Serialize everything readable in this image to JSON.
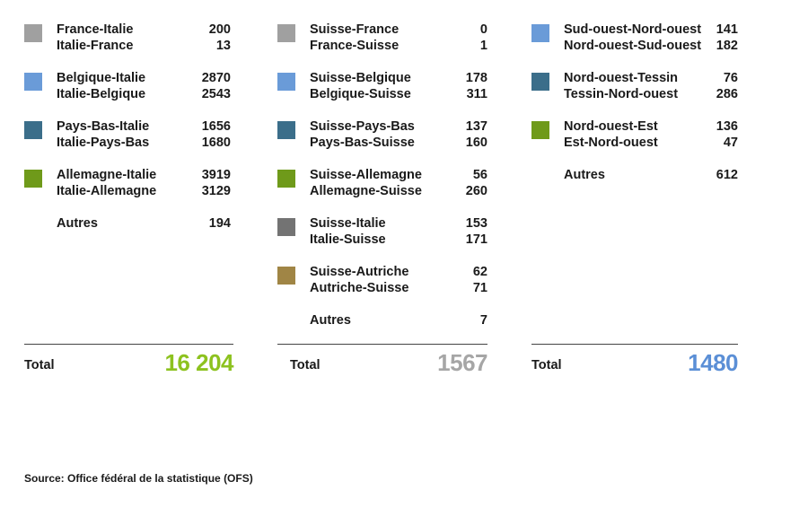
{
  "chart_data": {
    "type": "table",
    "columns": [
      {
        "groups": [
          {
            "color": "#a0a0a0",
            "rows": [
              {
                "label": "France-Italie",
                "value": "200"
              },
              {
                "label": "Italie-France",
                "value": "13"
              }
            ]
          },
          {
            "color": "#6a9bd8",
            "rows": [
              {
                "label": "Belgique-Italie",
                "value": "2870"
              },
              {
                "label": "Italie-Belgique",
                "value": "2543"
              }
            ]
          },
          {
            "color": "#3b6e8a",
            "rows": [
              {
                "label": "Pays-Bas-Italie",
                "value": "1656"
              },
              {
                "label": "Italie-Pays-Bas",
                "value": "1680"
              }
            ]
          },
          {
            "color": "#6f9a1a",
            "rows": [
              {
                "label": "Allemagne-Italie",
                "value": "3919"
              },
              {
                "label": "Italie-Allemagne",
                "value": "3129"
              }
            ]
          },
          {
            "color": "",
            "rows": [
              {
                "label": "Autres",
                "value": "194"
              }
            ]
          }
        ],
        "total_label": "Total",
        "total_value": "16 204",
        "total_color": "#8dc21f"
      },
      {
        "groups": [
          {
            "color": "#a0a0a0",
            "rows": [
              {
                "label": "Suisse-France",
                "value": "0"
              },
              {
                "label": "France-Suisse",
                "value": "1"
              }
            ]
          },
          {
            "color": "#6a9bd8",
            "rows": [
              {
                "label": "Suisse-Belgique",
                "value": "178"
              },
              {
                "label": "Belgique-Suisse",
                "value": "311"
              }
            ]
          },
          {
            "color": "#3b6e8a",
            "rows": [
              {
                "label": "Suisse-Pays-Bas",
                "value": "137"
              },
              {
                "label": "Pays-Bas-Suisse",
                "value": "160"
              }
            ]
          },
          {
            "color": "#6f9a1a",
            "rows": [
              {
                "label": "Suisse-Allemagne",
                "value": "56"
              },
              {
                "label": "Allemagne-Suisse",
                "value": "260"
              }
            ]
          },
          {
            "color": "#737373",
            "rows": [
              {
                "label": "Suisse-Italie",
                "value": "153"
              },
              {
                "label": "Italie-Suisse",
                "value": "171"
              }
            ]
          },
          {
            "color": "#a08545",
            "rows": [
              {
                "label": "Suisse-Autriche",
                "value": "62"
              },
              {
                "label": "Autriche-Suisse",
                "value": "71"
              }
            ]
          },
          {
            "color": "",
            "rows": [
              {
                "label": "Autres",
                "value": "7"
              }
            ]
          }
        ],
        "total_label": "Total",
        "total_value": "1567",
        "total_color": "#a6a6a6"
      },
      {
        "groups": [
          {
            "color": "#6a9bd8",
            "rows": [
              {
                "label": "Sud-ouest-Nord-ouest",
                "value": "141"
              },
              {
                "label": "Nord-ouest-Sud-ouest",
                "value": "182"
              }
            ]
          },
          {
            "color": "#3b6e8a",
            "rows": [
              {
                "label": "Nord-ouest-Tessin",
                "value": "76"
              },
              {
                "label": "Tessin-Nord-ouest",
                "value": "286"
              }
            ]
          },
          {
            "color": "#6f9a1a",
            "rows": [
              {
                "label": "Nord-ouest-Est",
                "value": "136"
              },
              {
                "label": "Est-Nord-ouest",
                "value": "47"
              }
            ]
          },
          {
            "color": "",
            "rows": [
              {
                "label": "Autres",
                "value": "612"
              }
            ]
          }
        ],
        "total_label": "Total",
        "total_value": "1480",
        "total_color": "#5b8fd6"
      }
    ]
  },
  "source": "Source: Office fédéral de la statistique (OFS)"
}
